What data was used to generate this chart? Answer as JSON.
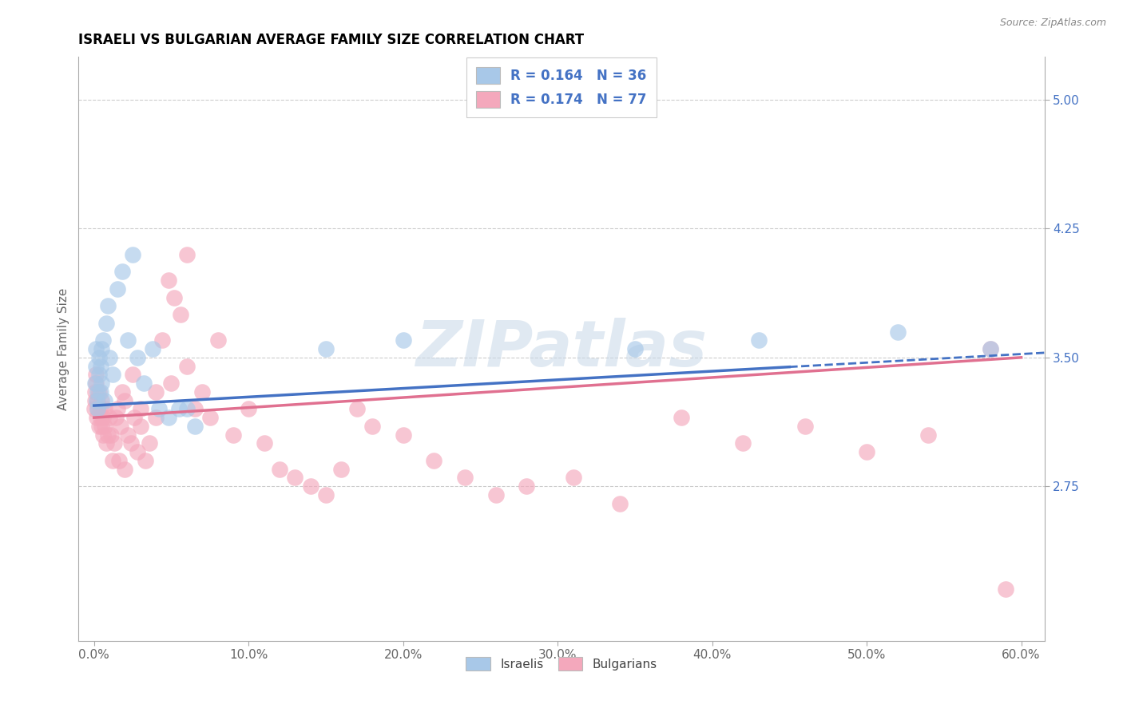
{
  "title": "ISRAELI VS BULGARIAN AVERAGE FAMILY SIZE CORRELATION CHART",
  "source": "Source: ZipAtlas.com",
  "ylabel": "Average Family Size",
  "xlabel_ticks": [
    "0.0%",
    "10.0%",
    "20.0%",
    "30.0%",
    "40.0%",
    "50.0%",
    "60.0%"
  ],
  "ytick_labels": [
    "2.75",
    "3.50",
    "4.25",
    "5.00"
  ],
  "ytick_values": [
    2.75,
    3.5,
    4.25,
    5.0
  ],
  "xlim": [
    -0.01,
    0.615
  ],
  "ylim": [
    1.85,
    5.25
  ],
  "israeli_color": "#a8c8e8",
  "bulgarian_color": "#f4a8bc",
  "israeli_line_color": "#4472c4",
  "bulgarian_line_color": "#e07090",
  "watermark": "ZIPatlas",
  "israelis_x": [
    0.0005,
    0.001,
    0.001,
    0.0015,
    0.002,
    0.002,
    0.003,
    0.003,
    0.004,
    0.004,
    0.005,
    0.005,
    0.006,
    0.007,
    0.008,
    0.009,
    0.01,
    0.012,
    0.015,
    0.018,
    0.022,
    0.025,
    0.028,
    0.032,
    0.038,
    0.042,
    0.048,
    0.055,
    0.06,
    0.065,
    0.15,
    0.2,
    0.35,
    0.43,
    0.52,
    0.58
  ],
  "israelis_y": [
    3.35,
    3.45,
    3.55,
    3.25,
    3.3,
    3.2,
    3.4,
    3.5,
    3.3,
    3.45,
    3.55,
    3.35,
    3.6,
    3.25,
    3.7,
    3.8,
    3.5,
    3.4,
    3.9,
    4.0,
    3.6,
    4.1,
    3.5,
    3.35,
    3.55,
    3.2,
    3.15,
    3.2,
    3.2,
    3.1,
    3.55,
    3.6,
    3.55,
    3.6,
    3.65,
    3.55
  ],
  "bulgarians_x": [
    0.0003,
    0.0005,
    0.0008,
    0.001,
    0.001,
    0.0015,
    0.002,
    0.002,
    0.003,
    0.003,
    0.004,
    0.004,
    0.005,
    0.005,
    0.006,
    0.006,
    0.007,
    0.007,
    0.008,
    0.009,
    0.01,
    0.011,
    0.012,
    0.013,
    0.014,
    0.015,
    0.016,
    0.017,
    0.018,
    0.02,
    0.022,
    0.024,
    0.026,
    0.028,
    0.03,
    0.033,
    0.036,
    0.04,
    0.044,
    0.048,
    0.052,
    0.056,
    0.06,
    0.065,
    0.07,
    0.075,
    0.08,
    0.09,
    0.1,
    0.11,
    0.12,
    0.13,
    0.14,
    0.15,
    0.16,
    0.17,
    0.18,
    0.2,
    0.22,
    0.24,
    0.26,
    0.28,
    0.31,
    0.34,
    0.38,
    0.42,
    0.46,
    0.5,
    0.54,
    0.58,
    0.02,
    0.025,
    0.03,
    0.04,
    0.05,
    0.06,
    0.59
  ],
  "bulgarians_y": [
    3.2,
    3.3,
    3.25,
    3.35,
    3.4,
    3.15,
    3.25,
    3.2,
    3.1,
    3.3,
    3.2,
    3.15,
    3.25,
    3.1,
    3.15,
    3.05,
    3.2,
    3.1,
    3.0,
    3.05,
    3.15,
    3.05,
    2.9,
    3.0,
    3.15,
    3.2,
    2.9,
    3.1,
    3.3,
    2.85,
    3.05,
    3.0,
    3.15,
    2.95,
    3.1,
    2.9,
    3.0,
    3.15,
    3.6,
    3.95,
    3.85,
    3.75,
    4.1,
    3.2,
    3.3,
    3.15,
    3.6,
    3.05,
    3.2,
    3.0,
    2.85,
    2.8,
    2.75,
    2.7,
    2.85,
    3.2,
    3.1,
    3.05,
    2.9,
    2.8,
    2.7,
    2.75,
    2.8,
    2.65,
    3.15,
    3.0,
    3.1,
    2.95,
    3.05,
    3.55,
    3.25,
    3.4,
    3.2,
    3.3,
    3.35,
    3.45,
    2.15
  ]
}
